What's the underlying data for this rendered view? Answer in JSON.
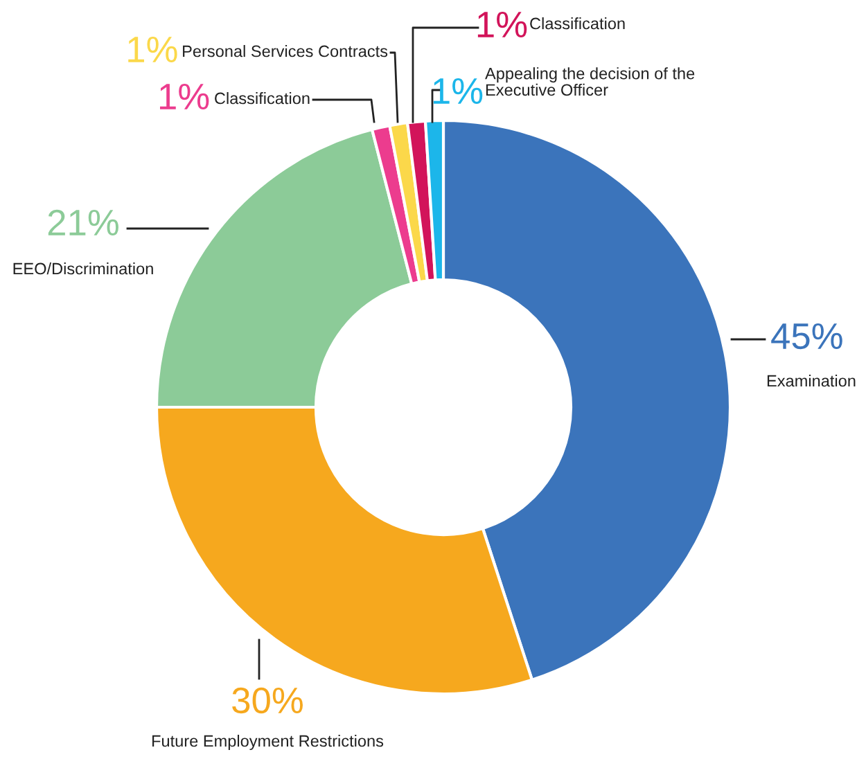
{
  "chart_data": {
    "type": "donut",
    "categories": [
      "Examination",
      "Future Employment Restrictions",
      "EEO/Discrimination",
      "Classification",
      "Personal Services Contracts",
      "Classification",
      "Appealing the decision of the\nExecutive Officer"
    ],
    "values": [
      45,
      30,
      21,
      1,
      1,
      1,
      1
    ],
    "value_labels": [
      "45%",
      "30%",
      "21%",
      "1%",
      "1%",
      "1%",
      "1%"
    ],
    "colors": [
      "#3b74bb",
      "#f6a81e",
      "#8ccb98",
      "#ec3c8e",
      "#fbd84a",
      "#d2145a",
      "#1cb6ea"
    ],
    "legend": false
  }
}
